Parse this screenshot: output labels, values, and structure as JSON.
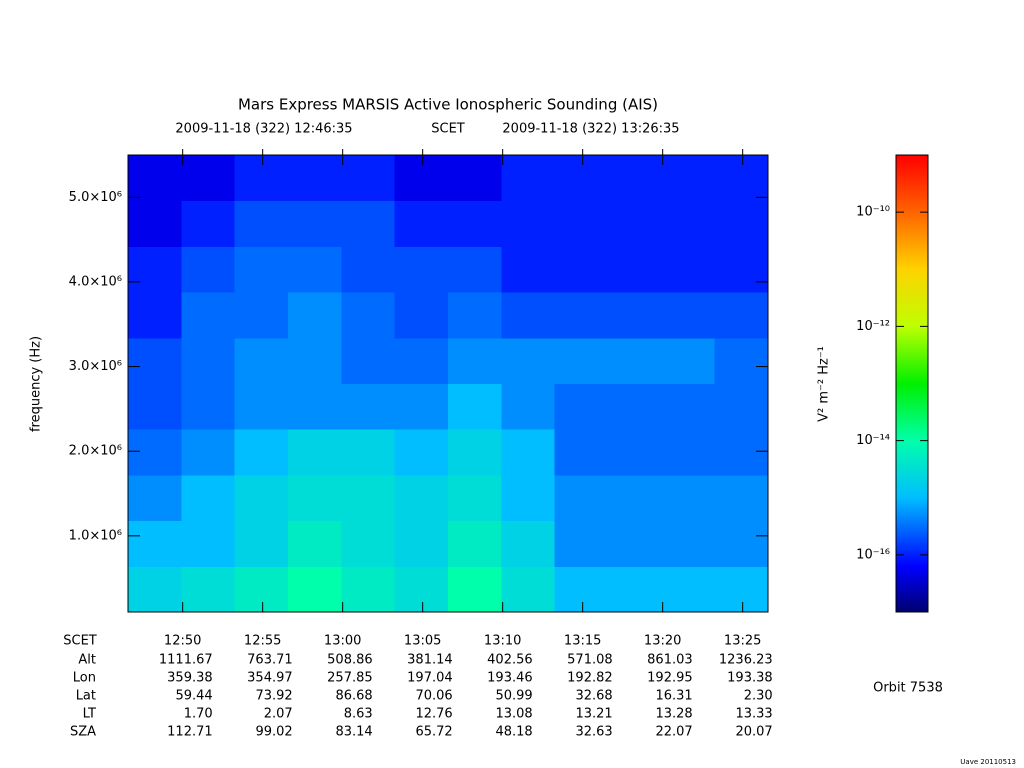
{
  "chart_data": {
    "type": "heatmap",
    "title": "Mars Express MARSIS Active Ionospheric Sounding (AIS)",
    "start_time_label": "2009-11-18 (322) 12:46:35",
    "time_system": "SCET",
    "end_time_label": "2009-11-18 (322) 13:26:35",
    "ylabel": "frequency (Hz)",
    "xlim": [
      "12:46:35",
      "13:26:35"
    ],
    "xticks": [
      "12:50",
      "12:55",
      "13:00",
      "13:05",
      "13:10",
      "13:15",
      "13:20",
      "13:25"
    ],
    "ylim": [
      100000,
      5500000
    ],
    "yticks": [
      {
        "value": 1000000,
        "label": "1.0×10⁶"
      },
      {
        "value": 2000000,
        "label": "2.0×10⁶"
      },
      {
        "value": 3000000,
        "label": "3.0×10⁶"
      },
      {
        "value": 4000000,
        "label": "4.0×10⁶"
      },
      {
        "value": 5000000,
        "label": "5.0×10⁶"
      }
    ],
    "x_bins": [
      "12:46:35",
      "12:49:55",
      "12:53:15",
      "12:56:35",
      "12:59:55",
      "13:03:15",
      "13:06:35",
      "13:09:55",
      "13:13:15",
      "13:16:35",
      "13:19:55",
      "13:23:15",
      "13:26:35"
    ],
    "y_bins": [
      100000,
      640000,
      1180000,
      1720000,
      2260000,
      2800000,
      3340000,
      3880000,
      4420000,
      4960000,
      5500000
    ],
    "z": [
      [
        2e-15,
        3e-15,
        5e-15,
        1e-14,
        5e-15,
        3e-15,
        1e-14,
        3e-15,
        1e-15,
        1e-15,
        1e-15,
        1e-15
      ],
      [
        1e-15,
        1e-15,
        2e-15,
        5e-15,
        3e-15,
        2e-15,
        5e-15,
        2e-15,
        5e-16,
        5e-16,
        5e-16,
        5e-16
      ],
      [
        5e-16,
        1e-15,
        2e-15,
        3e-15,
        3e-15,
        2e-15,
        3e-15,
        1e-15,
        5e-16,
        5e-16,
        5e-16,
        5e-16
      ],
      [
        3e-16,
        5e-16,
        1e-15,
        2e-15,
        2e-15,
        1e-15,
        2e-15,
        1e-15,
        3e-16,
        3e-16,
        3e-16,
        3e-16
      ],
      [
        2e-16,
        3e-16,
        5e-16,
        5e-16,
        5e-16,
        5e-16,
        1e-15,
        5e-16,
        3e-16,
        3e-16,
        3e-16,
        3e-16
      ],
      [
        2e-16,
        3e-16,
        5e-16,
        5e-16,
        3e-16,
        3e-16,
        5e-16,
        5e-16,
        5e-16,
        5e-16,
        5e-16,
        3e-16
      ],
      [
        1e-16,
        3e-16,
        3e-16,
        5e-16,
        3e-16,
        2e-16,
        3e-16,
        2e-16,
        2e-16,
        2e-16,
        2e-16,
        2e-16
      ],
      [
        1e-16,
        2e-16,
        3e-16,
        3e-16,
        2e-16,
        2e-16,
        2e-16,
        1e-16,
        1e-16,
        1e-16,
        1e-16,
        1e-16
      ],
      [
        5e-17,
        1e-16,
        2e-16,
        2e-16,
        2e-16,
        1e-16,
        1e-16,
        1e-16,
        1e-16,
        1e-16,
        1e-16,
        1e-16
      ],
      [
        5e-17,
        5e-17,
        1e-16,
        1e-16,
        1e-16,
        5e-17,
        5e-17,
        1e-16,
        1e-16,
        1e-16,
        1e-16,
        1e-16
      ]
    ],
    "colormap": "rainbow",
    "zlim": [
      1e-17,
      1e-09
    ],
    "zscale": "log",
    "zticks": [
      {
        "value": 1e-10,
        "label": "10⁻¹⁰"
      },
      {
        "value": 1e-12,
        "label": "10⁻¹²"
      },
      {
        "value": 1e-14,
        "label": "10⁻¹⁴"
      },
      {
        "value": 1e-16,
        "label": "10⁻¹⁶"
      }
    ],
    "zlabel": "V² m⁻² Hz⁻¹",
    "scet_label": "SCET",
    "ephemeris": {
      "row_labels": [
        "Alt",
        "Lon",
        "Lat",
        "LT",
        "SZA"
      ],
      "rows": [
        [
          "1111.67",
          "763.71",
          "508.86",
          "381.14",
          "402.56",
          "571.08",
          "861.03",
          "1236.23"
        ],
        [
          "359.38",
          "354.97",
          "257.85",
          "197.04",
          "193.46",
          "192.82",
          "192.95",
          "193.38"
        ],
        [
          "59.44",
          "73.92",
          "86.68",
          "70.06",
          "50.99",
          "32.68",
          "16.31",
          "2.30"
        ],
        [
          "1.70",
          "2.07",
          "8.63",
          "12.76",
          "13.08",
          "13.21",
          "13.28",
          "13.33"
        ],
        [
          "112.71",
          "99.02",
          "83.14",
          "65.72",
          "48.18",
          "32.63",
          "22.07",
          "20.07"
        ]
      ]
    },
    "orbit_label": "Orbit 7538",
    "footer": "Uave 20110513"
  }
}
